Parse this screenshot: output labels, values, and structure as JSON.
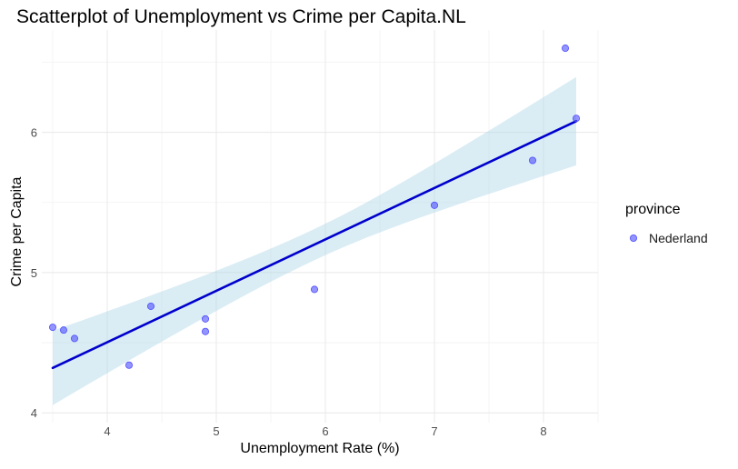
{
  "chart_data": {
    "type": "scatter",
    "title": "Scatterplot of Unemployment vs Crime per Capita.NL",
    "xlabel": "Unemployment Rate (%)",
    "ylabel": "Crime per Capita",
    "xlim": [
      3.4,
      8.5
    ],
    "ylim": [
      3.93,
      6.73
    ],
    "x_ticks": [
      4,
      5,
      6,
      7,
      8
    ],
    "y_ticks": [
      4,
      5,
      6
    ],
    "grid": true,
    "legend": {
      "title": "province",
      "position": "right",
      "entries": [
        "Nederland"
      ]
    },
    "series": [
      {
        "name": "Nederland",
        "color": "#4d4dff",
        "points": [
          {
            "x": 3.5,
            "y": 4.61
          },
          {
            "x": 3.6,
            "y": 4.59
          },
          {
            "x": 3.7,
            "y": 4.53
          },
          {
            "x": 4.2,
            "y": 4.34
          },
          {
            "x": 4.4,
            "y": 4.76
          },
          {
            "x": 4.9,
            "y": 4.67
          },
          {
            "x": 4.9,
            "y": 4.58
          },
          {
            "x": 5.9,
            "y": 4.88
          },
          {
            "x": 7.0,
            "y": 5.48
          },
          {
            "x": 7.9,
            "y": 5.8
          },
          {
            "x": 8.2,
            "y": 6.6
          },
          {
            "x": 8.3,
            "y": 6.1
          }
        ]
      }
    ],
    "regression": {
      "method": "lm",
      "color": "#0000cd",
      "band_color": "#add8e6",
      "x_range": [
        3.5,
        8.3
      ],
      "fit": [
        4.32,
        6.08
      ],
      "ci_lower": [
        4.06,
        5.78
      ],
      "ci_upper": [
        4.59,
        6.41
      ]
    }
  }
}
